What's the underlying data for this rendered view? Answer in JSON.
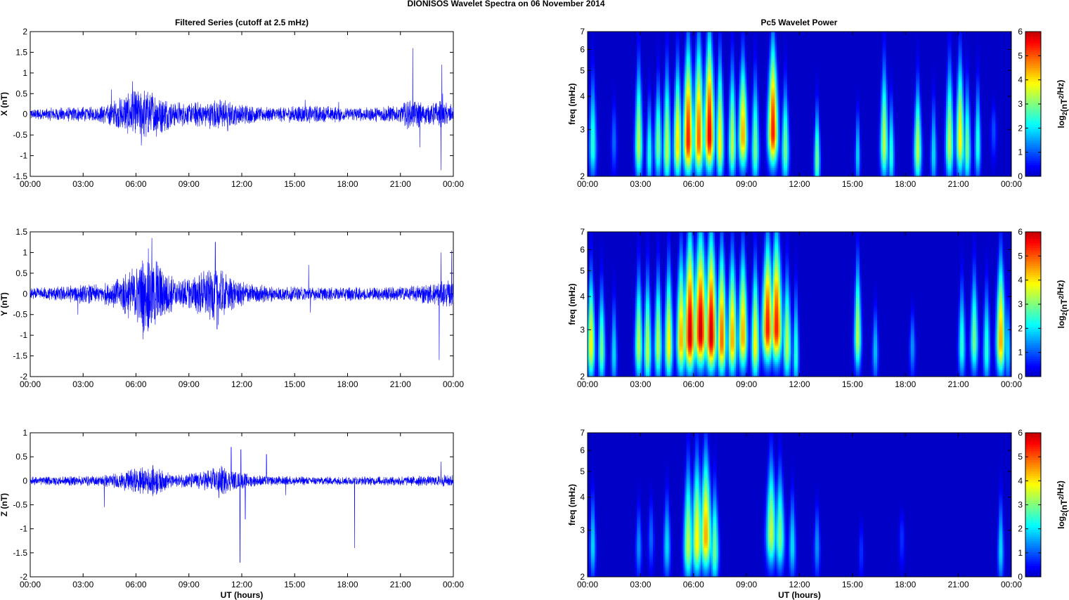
{
  "figure_title": "DIONISOS Wavelet Spectra on 06 November  2014",
  "left_title": "Filtered Series (cutoff at 2.5 mHz)",
  "right_title": "Pc5 Wavelet Power",
  "x_label": "UT (hours)",
  "x_ticks": [
    "00:00",
    "03:00",
    "06:00",
    "09:00",
    "12:00",
    "15:00",
    "18:00",
    "21:00",
    "00:00"
  ],
  "colors": {
    "series": "#0000ff",
    "frame": "#000000",
    "bg_low": "#00008f"
  },
  "chart_data": [
    {
      "type": "line",
      "ylabel": "X (nT)",
      "ylim": [
        -1.5,
        2
      ],
      "yticks": [
        -1.5,
        -1,
        -0.5,
        0,
        0.5,
        1,
        1.5,
        2
      ],
      "xlim": [
        0,
        24
      ],
      "series": [
        {
          "values_summary": "high-frequency oscillation around 0"
        }
      ],
      "envelope": [
        [
          0,
          0.12
        ],
        [
          2,
          0.16
        ],
        [
          4,
          0.18
        ],
        [
          4.7,
          0.3
        ],
        [
          5.5,
          0.45
        ],
        [
          6.3,
          0.55
        ],
        [
          6.8,
          0.6
        ],
        [
          7.3,
          0.45
        ],
        [
          8,
          0.3
        ],
        [
          9,
          0.25
        ],
        [
          10,
          0.3
        ],
        [
          10.8,
          0.35
        ],
        [
          11.5,
          0.25
        ],
        [
          12.5,
          0.2
        ],
        [
          14,
          0.16
        ],
        [
          15.5,
          0.2
        ],
        [
          17,
          0.18
        ],
        [
          19,
          0.15
        ],
        [
          20,
          0.18
        ],
        [
          21,
          0.2
        ],
        [
          21.5,
          0.35
        ],
        [
          22,
          0.3
        ],
        [
          22.5,
          0.2
        ],
        [
          23.3,
          0.3
        ],
        [
          24,
          0.2
        ]
      ],
      "spikes": [
        [
          4.6,
          0.6
        ],
        [
          5.8,
          0.8
        ],
        [
          6.3,
          -0.75
        ],
        [
          21.7,
          1.6
        ],
        [
          22.1,
          -0.8
        ],
        [
          23.3,
          -1.35
        ],
        [
          23.35,
          1.2
        ],
        [
          23.4,
          0.5
        ],
        [
          11.2,
          -0.4
        ],
        [
          15.6,
          0.35
        ],
        [
          17.5,
          0.3
        ]
      ]
    },
    {
      "type": "line",
      "ylabel": "Y (nT)",
      "ylim": [
        -2,
        1.5
      ],
      "yticks": [
        -2,
        -1.5,
        -1,
        -0.5,
        0,
        0.5,
        1,
        1.5
      ],
      "xlim": [
        0,
        24
      ],
      "series": [
        {
          "values_summary": "high-frequency oscillation around 0"
        }
      ],
      "envelope": [
        [
          0,
          0.12
        ],
        [
          2,
          0.18
        ],
        [
          3,
          0.22
        ],
        [
          4,
          0.2
        ],
        [
          5,
          0.35
        ],
        [
          5.8,
          0.6
        ],
        [
          6.5,
          0.85
        ],
        [
          7,
          0.9
        ],
        [
          7.5,
          0.6
        ],
        [
          8.3,
          0.3
        ],
        [
          9.3,
          0.4
        ],
        [
          10.2,
          0.6
        ],
        [
          10.6,
          0.7
        ],
        [
          11.3,
          0.4
        ],
        [
          12.3,
          0.25
        ],
        [
          13.5,
          0.18
        ],
        [
          15,
          0.16
        ],
        [
          16.5,
          0.15
        ],
        [
          18,
          0.15
        ],
        [
          20,
          0.15
        ],
        [
          22,
          0.2
        ],
        [
          23,
          0.25
        ],
        [
          24,
          0.3
        ]
      ],
      "spikes": [
        [
          6.4,
          -1.1
        ],
        [
          6.9,
          1.35
        ],
        [
          6.7,
          1.1
        ],
        [
          10.5,
          1.25
        ],
        [
          10.6,
          -0.85
        ],
        [
          15.8,
          0.7
        ],
        [
          15.9,
          -0.45
        ],
        [
          23.2,
          -1.6
        ],
        [
          23.3,
          1.0
        ],
        [
          23.9,
          1.05
        ],
        [
          2.7,
          -0.5
        ]
      ]
    },
    {
      "type": "line",
      "ylabel": "Z (nT)",
      "ylim": [
        -2,
        1
      ],
      "yticks": [
        -2,
        -1.5,
        -1,
        -0.5,
        0,
        0.5,
        1
      ],
      "xlim": [
        0,
        24
      ],
      "series": [
        {
          "values_summary": "high-frequency oscillation around 0"
        }
      ],
      "envelope": [
        [
          0,
          0.08
        ],
        [
          2,
          0.09
        ],
        [
          3,
          0.1
        ],
        [
          4,
          0.1
        ],
        [
          5,
          0.15
        ],
        [
          5.8,
          0.22
        ],
        [
          6.5,
          0.3
        ],
        [
          7,
          0.3
        ],
        [
          7.6,
          0.18
        ],
        [
          8.5,
          0.12
        ],
        [
          10,
          0.2
        ],
        [
          10.8,
          0.3
        ],
        [
          11.3,
          0.2
        ],
        [
          12.5,
          0.12
        ],
        [
          14,
          0.09
        ],
        [
          16,
          0.08
        ],
        [
          18,
          0.08
        ],
        [
          20,
          0.09
        ],
        [
          22,
          0.1
        ],
        [
          24,
          0.12
        ]
      ],
      "spikes": [
        [
          4.2,
          -0.55
        ],
        [
          10.7,
          -0.35
        ],
        [
          11.4,
          0.7
        ],
        [
          11.9,
          -1.7
        ],
        [
          12.2,
          -0.8
        ],
        [
          11.95,
          0.65
        ],
        [
          13.4,
          0.55
        ],
        [
          18.4,
          -1.4
        ],
        [
          23.3,
          0.4
        ],
        [
          14.5,
          -0.3
        ]
      ]
    }
  ],
  "spectra": [
    {
      "type": "heatmap",
      "ylabel": "freq (mHz)",
      "ylim": [
        2,
        7
      ],
      "scale": "log",
      "yticks": [
        2,
        3,
        4,
        5,
        6,
        7
      ],
      "xlim": [
        0,
        24
      ],
      "colorbar": {
        "label": "log2(nT2/Hz)",
        "ticks": [
          0,
          1,
          2,
          3,
          4,
          5,
          6
        ],
        "range": [
          0,
          6
        ]
      },
      "blobs": [
        [
          0.3,
          2.6,
          2.5,
          0.15,
          2.8
        ],
        [
          1.5,
          2.7,
          1.2,
          0.12,
          1.5
        ],
        [
          2.9,
          2.6,
          3.5,
          0.15,
          3.5
        ],
        [
          3.5,
          2.4,
          2.5,
          0.12,
          2.0
        ],
        [
          4.0,
          2.6,
          3.0,
          0.15,
          2.5
        ],
        [
          4.5,
          2.5,
          3.5,
          0.15,
          3.5
        ],
        [
          5.1,
          2.6,
          4.2,
          0.16,
          3.5
        ],
        [
          5.7,
          2.7,
          5.5,
          0.2,
          4.5
        ],
        [
          6.3,
          2.7,
          5.0,
          0.2,
          4.8
        ],
        [
          6.9,
          2.8,
          5.8,
          0.2,
          5.2
        ],
        [
          7.5,
          2.6,
          4.0,
          0.15,
          4.0
        ],
        [
          8.2,
          2.6,
          3.5,
          0.15,
          3.5
        ],
        [
          8.8,
          2.8,
          4.5,
          0.18,
          3.5
        ],
        [
          9.5,
          2.5,
          3.0,
          0.15,
          3.0
        ],
        [
          10.5,
          2.9,
          5.5,
          0.2,
          4.5
        ],
        [
          11.2,
          2.5,
          3.0,
          0.15,
          2.5
        ],
        [
          13.0,
          2.3,
          3.0,
          0.12,
          1.8
        ],
        [
          15.3,
          2.4,
          2.0,
          0.1,
          1.5
        ],
        [
          16.8,
          2.6,
          3.5,
          0.15,
          3.5
        ],
        [
          17.2,
          2.4,
          2.5,
          0.12,
          2.0
        ],
        [
          18.7,
          2.5,
          3.5,
          0.15,
          2.5
        ],
        [
          19.6,
          2.4,
          2.0,
          0.12,
          2.0
        ],
        [
          20.5,
          2.6,
          3.5,
          0.16,
          3.5
        ],
        [
          21.1,
          2.7,
          4.0,
          0.16,
          3.8
        ],
        [
          21.5,
          2.5,
          3.0,
          0.14,
          2.5
        ],
        [
          22.1,
          2.6,
          2.5,
          0.12,
          2.5
        ],
        [
          23.0,
          3.0,
          1.0,
          0.12,
          1.0
        ]
      ]
    },
    {
      "type": "heatmap",
      "ylabel": "freq (mHz)",
      "ylim": [
        2,
        7
      ],
      "scale": "log",
      "yticks": [
        2,
        3,
        4,
        5,
        6,
        7
      ],
      "xlim": [
        0,
        24
      ],
      "colorbar": {
        "label": "log2(nT2/Hz)",
        "ticks": [
          0,
          1,
          2,
          3,
          4,
          5,
          6
        ],
        "range": [
          0,
          6
        ]
      },
      "blobs": [
        [
          0.2,
          2.6,
          4.0,
          0.15,
          3.0
        ],
        [
          0.8,
          2.5,
          3.0,
          0.14,
          2.5
        ],
        [
          1.5,
          2.4,
          2.0,
          0.12,
          2.0
        ],
        [
          2.9,
          2.6,
          3.5,
          0.15,
          3.0
        ],
        [
          3.4,
          2.5,
          3.5,
          0.15,
          3.0
        ],
        [
          4.0,
          2.6,
          3.5,
          0.15,
          3.0
        ],
        [
          4.6,
          2.6,
          4.0,
          0.16,
          3.5
        ],
        [
          5.3,
          2.7,
          4.5,
          0.18,
          4.0
        ],
        [
          5.8,
          2.8,
          6.0,
          0.22,
          5.2
        ],
        [
          6.4,
          2.9,
          6.0,
          0.24,
          5.8
        ],
        [
          7.0,
          2.8,
          6.0,
          0.22,
          5.5
        ],
        [
          7.6,
          2.7,
          5.0,
          0.18,
          4.5
        ],
        [
          8.2,
          2.7,
          4.5,
          0.18,
          4.0
        ],
        [
          8.8,
          2.8,
          4.5,
          0.18,
          4.0
        ],
        [
          9.5,
          2.6,
          4.0,
          0.16,
          3.5
        ],
        [
          10.2,
          3.0,
          5.5,
          0.22,
          4.5
        ],
        [
          10.7,
          3.0,
          5.5,
          0.22,
          5.0
        ],
        [
          11.3,
          2.6,
          3.5,
          0.16,
          3.0
        ],
        [
          11.8,
          2.4,
          2.5,
          0.12,
          2.5
        ],
        [
          15.3,
          2.8,
          3.5,
          0.14,
          3.5
        ],
        [
          16.3,
          2.5,
          1.8,
          0.12,
          1.5
        ],
        [
          18.4,
          2.6,
          1.5,
          0.12,
          1.2
        ],
        [
          21.2,
          2.6,
          2.5,
          0.14,
          2.5
        ],
        [
          21.9,
          2.7,
          3.0,
          0.15,
          3.0
        ],
        [
          22.6,
          2.5,
          2.5,
          0.14,
          2.5
        ],
        [
          23.4,
          2.7,
          4.5,
          0.18,
          3.8
        ],
        [
          23.8,
          2.5,
          2.0,
          0.12,
          1.8
        ]
      ]
    },
    {
      "type": "heatmap",
      "ylabel": "freq (mHz)",
      "ylim": [
        2,
        7
      ],
      "scale": "log",
      "yticks": [
        2,
        3,
        4,
        5,
        6,
        7
      ],
      "xlim": [
        0,
        24
      ],
      "colorbar": {
        "label": "log2(nT2/Hz)",
        "ticks": [
          0,
          1,
          2,
          3,
          4,
          5,
          6
        ],
        "range": [
          0,
          6
        ]
      },
      "blobs": [
        [
          0.3,
          2.6,
          2.0,
          0.12,
          2.0
        ],
        [
          2.9,
          2.6,
          1.5,
          0.12,
          1.5
        ],
        [
          3.6,
          2.8,
          1.2,
          0.12,
          1.5
        ],
        [
          4.5,
          2.6,
          2.0,
          0.14,
          2.0
        ],
        [
          5.7,
          2.6,
          3.5,
          0.18,
          3.5
        ],
        [
          6.2,
          2.7,
          4.0,
          0.2,
          3.8
        ],
        [
          6.7,
          2.8,
          4.5,
          0.22,
          4.0
        ],
        [
          7.2,
          2.5,
          3.0,
          0.16,
          2.5
        ],
        [
          10.4,
          2.9,
          3.5,
          0.2,
          3.5
        ],
        [
          10.9,
          2.8,
          3.0,
          0.18,
          3.0
        ],
        [
          11.6,
          2.6,
          2.0,
          0.14,
          2.0
        ],
        [
          13.0,
          2.6,
          1.5,
          0.12,
          1.5
        ],
        [
          15.5,
          2.5,
          0.8,
          0.1,
          1.0
        ],
        [
          17.8,
          2.8,
          0.8,
          0.12,
          1.0
        ],
        [
          23.4,
          2.5,
          2.0,
          0.12,
          2.0
        ]
      ]
    }
  ]
}
